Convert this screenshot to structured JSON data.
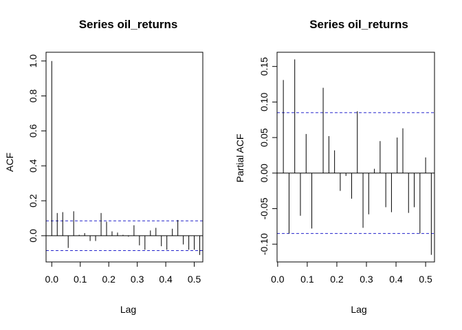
{
  "chart_data": [
    {
      "type": "bar",
      "title": "Series  oil_returns",
      "xlabel": "Lag",
      "ylabel": "ACF",
      "xlim": [
        -0.02,
        0.53
      ],
      "ylim": [
        -0.15,
        1.05
      ],
      "xticks": [
        "0.0",
        "0.1",
        "0.2",
        "0.3",
        "0.4",
        "0.5"
      ],
      "xtick_values": [
        0.0,
        0.1,
        0.2,
        0.3,
        0.4,
        0.5
      ],
      "yticks": [
        "0.0",
        "0.2",
        "0.4",
        "0.6",
        "0.8",
        "1.0"
      ],
      "ytick_values": [
        0.0,
        0.2,
        0.4,
        0.6,
        0.8,
        1.0
      ],
      "ci": 0.085,
      "x": [
        0.0,
        0.0192,
        0.0385,
        0.0577,
        0.0769,
        0.0962,
        0.1154,
        0.1346,
        0.1538,
        0.1731,
        0.1923,
        0.2115,
        0.2308,
        0.25,
        0.2692,
        0.2885,
        0.3077,
        0.3269,
        0.3462,
        0.3654,
        0.3846,
        0.4038,
        0.4231,
        0.4423,
        0.4615,
        0.4808,
        0.5,
        0.5192
      ],
      "values": [
        1.0,
        0.13,
        0.135,
        -0.07,
        0.14,
        0.005,
        0.015,
        -0.03,
        -0.03,
        0.13,
        0.08,
        0.025,
        0.018,
        0.005,
        -0.005,
        0.06,
        -0.055,
        -0.08,
        0.03,
        0.045,
        -0.06,
        -0.08,
        0.04,
        0.09,
        -0.05,
        -0.08,
        -0.08,
        -0.11
      ]
    },
    {
      "type": "bar",
      "title": "Series  oil_returns",
      "xlabel": "Lag",
      "ylabel": "Partial ACF",
      "xlim": [
        -0.002,
        0.53
      ],
      "ylim": [
        -0.125,
        0.17
      ],
      "xticks": [
        "0.0",
        "0.1",
        "0.2",
        "0.3",
        "0.4",
        "0.5"
      ],
      "xtick_values": [
        0.0,
        0.1,
        0.2,
        0.3,
        0.4,
        0.5
      ],
      "yticks": [
        "-0.10",
        "-0.05",
        "0.00",
        "0.05",
        "0.10",
        "0.15"
      ],
      "ytick_values": [
        -0.1,
        -0.05,
        0.0,
        0.05,
        0.1,
        0.15
      ],
      "ci": 0.085,
      "x": [
        0.0192,
        0.0385,
        0.0577,
        0.0769,
        0.0962,
        0.1154,
        0.1346,
        0.1538,
        0.1731,
        0.1923,
        0.2115,
        0.2308,
        0.25,
        0.2692,
        0.2885,
        0.3077,
        0.3269,
        0.3462,
        0.3654,
        0.3846,
        0.4038,
        0.4231,
        0.4423,
        0.4615,
        0.4808,
        0.5,
        0.5192
      ],
      "values": [
        0.131,
        -0.085,
        0.16,
        -0.06,
        0.055,
        -0.078,
        0.0,
        0.12,
        0.052,
        0.032,
        -0.025,
        -0.004,
        -0.036,
        0.087,
        -0.077,
        -0.058,
        0.006,
        0.045,
        -0.048,
        -0.055,
        0.05,
        0.063,
        -0.056,
        -0.048,
        -0.085,
        0.022,
        -0.115
      ]
    }
  ]
}
